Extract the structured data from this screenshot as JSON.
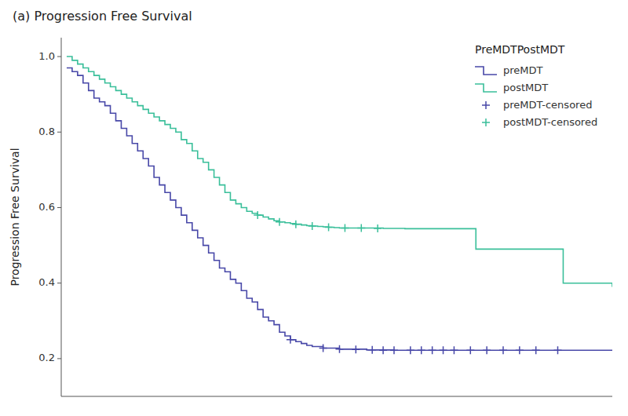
{
  "chart_data": {
    "type": "step",
    "title": "(a) Progression Free Survival",
    "ylabel": "Progression Free Survival",
    "legend_title": "PreMDTPostMDT",
    "xlim": [
      -1,
      100
    ],
    "ylim": [
      0.1,
      1.05
    ],
    "yticks": [
      0.2,
      0.4,
      0.6,
      0.8,
      {
        "value": 1.0,
        "label": "1.0"
      }
    ],
    "tick_labels": "y",
    "grid": false,
    "legend": "upper-right",
    "series": [
      {
        "name": "preMDT",
        "type": "step",
        "color": "#4848a8",
        "x": [
          0,
          1,
          2,
          3,
          4,
          5,
          6,
          7,
          8,
          9,
          10,
          11,
          12,
          13,
          14,
          15,
          16,
          17,
          18,
          19,
          20,
          21,
          22,
          23,
          24,
          25,
          26,
          27,
          28,
          29,
          30,
          31,
          32,
          33,
          34,
          35,
          36,
          37,
          38,
          39,
          40,
          41,
          42,
          43,
          44,
          45,
          47,
          50,
          55,
          60,
          65,
          70,
          75,
          80,
          85,
          90,
          95,
          100
        ],
        "values": [
          0.97,
          0.96,
          0.95,
          0.93,
          0.91,
          0.89,
          0.88,
          0.87,
          0.85,
          0.83,
          0.81,
          0.79,
          0.77,
          0.75,
          0.73,
          0.71,
          0.68,
          0.66,
          0.64,
          0.62,
          0.6,
          0.58,
          0.56,
          0.54,
          0.52,
          0.5,
          0.48,
          0.46,
          0.44,
          0.43,
          0.41,
          0.4,
          0.38,
          0.36,
          0.35,
          0.33,
          0.31,
          0.3,
          0.29,
          0.27,
          0.26,
          0.25,
          0.245,
          0.24,
          0.235,
          0.232,
          0.228,
          0.225,
          0.223,
          0.222,
          0.222,
          0.222,
          0.222,
          0.222,
          0.222,
          0.222,
          0.222,
          0.222
        ]
      },
      {
        "name": "postMDT",
        "type": "step",
        "color": "#3abf9a",
        "x": [
          0,
          1,
          2,
          3,
          4,
          5,
          6,
          7,
          8,
          9,
          10,
          11,
          12,
          13,
          14,
          15,
          16,
          17,
          18,
          19,
          20,
          21,
          22,
          23,
          24,
          25,
          26,
          27,
          28,
          29,
          30,
          31,
          32,
          33,
          34,
          35,
          36,
          37,
          38,
          39,
          40,
          41,
          42,
          43,
          44,
          45,
          46,
          47,
          48,
          49,
          50,
          51,
          52,
          53,
          54,
          55,
          56,
          57,
          58,
          60,
          62,
          75,
          76,
          90,
          91,
          99,
          100
        ],
        "values": [
          1.0,
          0.99,
          0.98,
          0.97,
          0.96,
          0.95,
          0.94,
          0.93,
          0.92,
          0.91,
          0.9,
          0.89,
          0.88,
          0.87,
          0.86,
          0.85,
          0.84,
          0.83,
          0.82,
          0.81,
          0.8,
          0.78,
          0.77,
          0.75,
          0.73,
          0.72,
          0.7,
          0.68,
          0.66,
          0.64,
          0.62,
          0.61,
          0.6,
          0.59,
          0.585,
          0.58,
          0.575,
          0.57,
          0.565,
          0.562,
          0.56,
          0.558,
          0.556,
          0.554,
          0.552,
          0.551,
          0.55,
          0.549,
          0.548,
          0.547,
          0.546,
          0.546,
          0.546,
          0.546,
          0.546,
          0.546,
          0.546,
          0.546,
          0.545,
          0.545,
          0.544,
          0.49,
          0.49,
          0.49,
          0.4,
          0.4,
          0.39
        ]
      },
      {
        "name": "preMDT-censored",
        "type": "scatter",
        "marker": "plus",
        "color": "#4848a8",
        "x": [
          41,
          47,
          50,
          53,
          56,
          58,
          60,
          63,
          65,
          67,
          69,
          71,
          74,
          77,
          80,
          83,
          86,
          90
        ],
        "values": [
          0.25,
          0.228,
          0.225,
          0.224,
          0.223,
          0.222,
          0.222,
          0.222,
          0.222,
          0.222,
          0.222,
          0.222,
          0.222,
          0.222,
          0.222,
          0.222,
          0.222,
          0.222
        ]
      },
      {
        "name": "postMDT-censored",
        "type": "scatter",
        "marker": "plus",
        "color": "#3abf9a",
        "x": [
          35,
          39,
          42,
          45,
          48,
          51,
          54,
          57
        ],
        "values": [
          0.58,
          0.562,
          0.556,
          0.551,
          0.548,
          0.546,
          0.546,
          0.545
        ]
      }
    ]
  }
}
